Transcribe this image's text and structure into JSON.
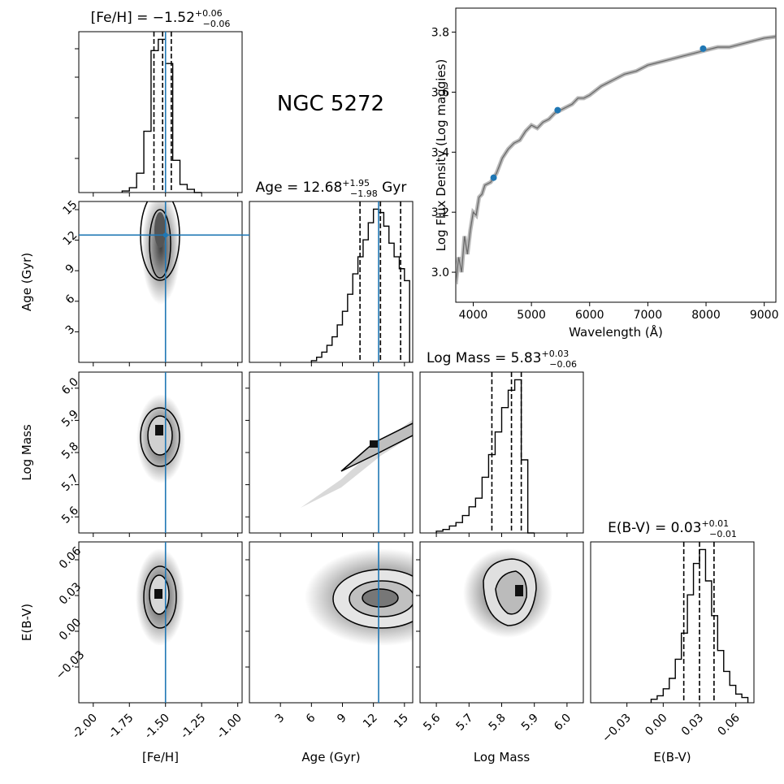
{
  "title": "NGC 5272",
  "colors": {
    "truth": "#1f77b4",
    "hist": "#000000",
    "point": "#1f77b4",
    "model": "#808080"
  },
  "params": [
    {
      "key": "feh",
      "label": "[Fe/H]",
      "range": [
        -2.1,
        -0.97
      ],
      "ticks": [
        "-2.00",
        "-1.75",
        "-1.50",
        "-1.25",
        "-1.00"
      ],
      "tickvals": [
        -2.0,
        -1.75,
        -1.5,
        -1.25,
        -1.0
      ],
      "truth": -1.5,
      "title": {
        "prefix": "[Fe/H] = ",
        "value": "−1.52",
        "plus": "+0.06",
        "minus": "−0.06",
        "suffix": ""
      },
      "quantiles": [
        -1.58,
        -1.52,
        -1.46
      ]
    },
    {
      "key": "age",
      "label": "Age (Gyr)",
      "range": [
        0,
        15.8
      ],
      "ticks": [
        "3",
        "6",
        "9",
        "12",
        "15"
      ],
      "tickvals": [
        3,
        6,
        9,
        12,
        15
      ],
      "truth": 12.5,
      "title": {
        "prefix": "Age = ",
        "value": "12.68",
        "plus": "+1.95",
        "minus": "−1.98",
        "suffix": " Gyr"
      },
      "quantiles": [
        10.7,
        12.68,
        14.63
      ]
    },
    {
      "key": "mass",
      "label": "Log Mass",
      "range": [
        5.55,
        6.05
      ],
      "ticks": [
        "5.6",
        "5.7",
        "5.8",
        "5.9",
        "6.0"
      ],
      "tickvals": [
        5.6,
        5.7,
        5.8,
        5.9,
        6.0
      ],
      "truth": null,
      "title": {
        "prefix": "Log Mass = ",
        "value": "5.83",
        "plus": "+0.03",
        "minus": "−0.06",
        "suffix": ""
      },
      "quantiles": [
        5.77,
        5.83,
        5.86
      ]
    },
    {
      "key": "ebv",
      "label": "E(B-V)",
      "range": [
        -0.06,
        0.075
      ],
      "ticks": [
        "−0.03",
        "0.00",
        "0.03",
        "0.06"
      ],
      "tickvals": [
        -0.03,
        0.0,
        0.03,
        0.06
      ],
      "truth": null,
      "title": {
        "prefix": "E(B-V) = ",
        "value": "0.03",
        "plus": "+0.01",
        "minus": "−0.01",
        "suffix": ""
      },
      "quantiles": [
        0.017,
        0.03,
        0.042
      ]
    }
  ],
  "chart_data": [
    {
      "type": "bar",
      "name": "feh-hist",
      "edges": [
        -1.8,
        -1.75,
        -1.7,
        -1.65,
        -1.6,
        -1.55,
        -1.5,
        -1.45,
        -1.4,
        -1.35,
        -1.3,
        -1.25
      ],
      "values": [
        1,
        3,
        12,
        38,
        88,
        95,
        80,
        20,
        5,
        2,
        0
      ]
    },
    {
      "type": "bar",
      "name": "age-hist",
      "edges": [
        6,
        6.5,
        7,
        7.5,
        8,
        8.5,
        9,
        9.5,
        10,
        10.5,
        11,
        11.5,
        12,
        12.5,
        13,
        13.5,
        14,
        14.5,
        15,
        15.5
      ],
      "values": [
        1,
        3,
        6,
        10,
        15,
        22,
        30,
        40,
        52,
        62,
        72,
        82,
        90,
        88,
        80,
        70,
        62,
        55,
        48
      ]
    },
    {
      "type": "bar",
      "name": "mass-hist",
      "edges": [
        5.6,
        5.62,
        5.64,
        5.66,
        5.68,
        5.7,
        5.72,
        5.74,
        5.76,
        5.78,
        5.8,
        5.82,
        5.84,
        5.86,
        5.88,
        5.9
      ],
      "values": [
        1,
        2,
        4,
        6,
        10,
        15,
        20,
        32,
        45,
        58,
        72,
        82,
        88,
        42,
        0
      ]
    },
    {
      "type": "bar",
      "name": "ebv-hist",
      "edges": [
        -0.01,
        -0.005,
        0,
        0.005,
        0.01,
        0.015,
        0.02,
        0.025,
        0.03,
        0.035,
        0.04,
        0.045,
        0.05,
        0.055,
        0.06,
        0.065,
        0.07
      ],
      "values": [
        2,
        4,
        8,
        14,
        25,
        40,
        62,
        80,
        88,
        70,
        50,
        30,
        18,
        10,
        5,
        3
      ]
    },
    {
      "type": "line",
      "name": "sed",
      "xlabel": "Wavelength (Å)",
      "ylabel": "Log Flux Density (Log maggies)",
      "xlim": [
        3700,
        9200
      ],
      "ylim": [
        2.9,
        3.88
      ],
      "xticks": [
        4000,
        5000,
        6000,
        7000,
        8000,
        9000
      ],
      "yticks": [
        3.0,
        3.2,
        3.4,
        3.6,
        3.8
      ],
      "model": {
        "x": [
          3700,
          3750,
          3800,
          3850,
          3900,
          3950,
          4000,
          4050,
          4100,
          4150,
          4200,
          4300,
          4400,
          4500,
          4600,
          4700,
          4800,
          4900,
          5000,
          5100,
          5200,
          5300,
          5400,
          5500,
          5600,
          5700,
          5800,
          5900,
          6000,
          6200,
          6400,
          6600,
          6800,
          7000,
          7200,
          7400,
          7600,
          7800,
          8000,
          8200,
          8400,
          8600,
          8800,
          9000,
          9200
        ],
        "y": [
          2.96,
          3.05,
          3.0,
          3.12,
          3.06,
          3.14,
          3.2,
          3.19,
          3.25,
          3.26,
          3.29,
          3.3,
          3.33,
          3.38,
          3.41,
          3.43,
          3.44,
          3.47,
          3.49,
          3.48,
          3.5,
          3.51,
          3.53,
          3.54,
          3.55,
          3.56,
          3.58,
          3.58,
          3.59,
          3.62,
          3.64,
          3.66,
          3.67,
          3.69,
          3.7,
          3.71,
          3.72,
          3.73,
          3.74,
          3.75,
          3.75,
          3.76,
          3.77,
          3.78,
          3.785
        ]
      },
      "points": {
        "x": [
          4350,
          5450,
          7950
        ],
        "y": [
          3.315,
          3.54,
          3.745
        ]
      }
    }
  ]
}
